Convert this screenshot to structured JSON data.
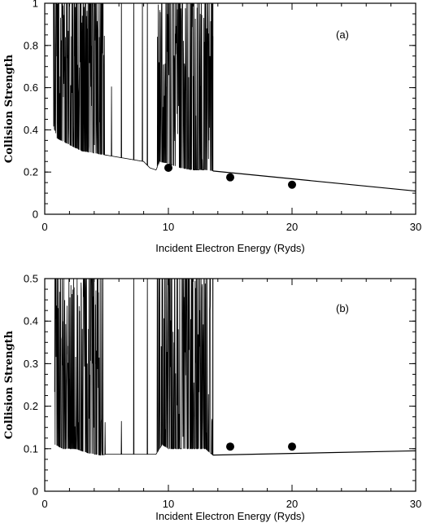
{
  "chart_data": [
    {
      "type": "line",
      "panel_label": "(a)",
      "xlabel": "Incident Electron Energy (Ryds)",
      "ylabel": "Collision Strength",
      "xlim": [
        0,
        30
      ],
      "ylim": [
        0,
        1
      ],
      "xticks": [
        0,
        10,
        20,
        30
      ],
      "xtick_labels": [
        "0",
        "10",
        "20",
        "30"
      ],
      "yticks": [
        0,
        0.2,
        0.4,
        0.6,
        0.8,
        1
      ],
      "ytick_labels": [
        "0",
        "0.2",
        "0.4",
        "0.6",
        "0.8",
        "1"
      ],
      "grid": false,
      "background": {
        "x": [
          0.7,
          1.0,
          2.0,
          3.0,
          4.0,
          5.0,
          6.0,
          7.0,
          8.0,
          8.5,
          9.0,
          9.3,
          10.0,
          11.0,
          12.0,
          13.0,
          13.6
        ],
        "y": [
          0.42,
          0.36,
          0.33,
          0.3,
          0.29,
          0.28,
          0.27,
          0.26,
          0.25,
          0.22,
          0.21,
          0.25,
          0.24,
          0.22,
          0.21,
          0.21,
          0.205
        ]
      },
      "resonance_bands": [
        {
          "x_start": 0.7,
          "x_end": 4.9,
          "ymax": 1.0
        },
        {
          "x_start": 9.1,
          "x_end": 13.6,
          "ymax": 1.0
        }
      ],
      "isolated_spikes": [
        {
          "x": 5.4,
          "y": 0.55
        },
        {
          "x": 6.2,
          "y": 1.0
        },
        {
          "x": 7.2,
          "y": 1.0
        },
        {
          "x": 7.9,
          "y": 1.0
        },
        {
          "x": 8.3,
          "y": 1.0
        }
      ],
      "high_energy": {
        "x": [
          13.6,
          30
        ],
        "y": [
          0.205,
          0.11
        ]
      },
      "points": {
        "x": [
          10,
          15,
          20
        ],
        "y": [
          0.22,
          0.175,
          0.14
        ]
      }
    },
    {
      "type": "line",
      "panel_label": "(b)",
      "xlabel": "Incident Electron Energy (Ryds)",
      "ylabel": "Collision Strength",
      "xlim": [
        0,
        30
      ],
      "ylim": [
        0,
        0.5
      ],
      "xticks": [
        0,
        10,
        20,
        30
      ],
      "xtick_labels": [
        "0",
        "10",
        "20",
        "30"
      ],
      "yticks": [
        0,
        0.1,
        0.2,
        0.3,
        0.4,
        0.5
      ],
      "ytick_labels": [
        "0",
        "0.1",
        "0.2",
        "0.3",
        "0.4",
        "0.5"
      ],
      "grid": false,
      "background": {
        "x": [
          0.8,
          1.5,
          2.5,
          3.5,
          4.5,
          5.0,
          6.0,
          7.0,
          8.0,
          9.0,
          9.5,
          10.0,
          11.0,
          12.0,
          13.0,
          13.6
        ],
        "y": [
          0.11,
          0.1,
          0.1,
          0.09,
          0.085,
          0.087,
          0.087,
          0.087,
          0.087,
          0.087,
          0.11,
          0.1,
          0.1,
          0.1,
          0.1,
          0.085
        ]
      },
      "resonance_bands": [
        {
          "x_start": 0.8,
          "x_end": 4.9,
          "ymax": 0.5
        },
        {
          "x_start": 9.1,
          "x_end": 13.6,
          "ymax": 0.5
        }
      ],
      "isolated_spikes": [
        {
          "x": 6.2,
          "y": 0.15
        },
        {
          "x": 7.2,
          "y": 0.5
        },
        {
          "x": 8.3,
          "y": 0.5
        }
      ],
      "high_energy": {
        "x": [
          13.6,
          30
        ],
        "y": [
          0.085,
          0.095
        ]
      },
      "points": {
        "x": [
          15,
          20
        ],
        "y": [
          0.105,
          0.105
        ]
      }
    }
  ]
}
